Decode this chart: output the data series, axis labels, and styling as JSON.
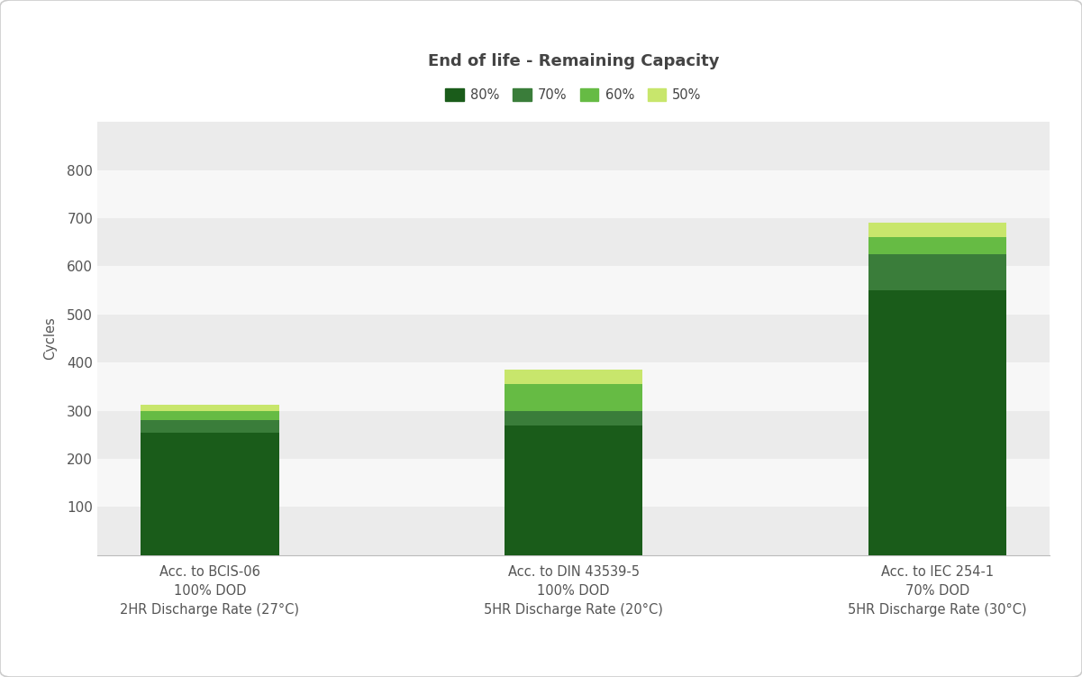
{
  "title": "End of life - Remaining Capacity",
  "ylabel": "Cycles",
  "categories": [
    "Acc. to BCIS-06\n100% DOD\n2HR Discharge Rate (27°C)",
    "Acc. to DIN 43539-5\n100% DOD\n5HR Discharge Rate (20°C)",
    "Acc. to IEC 254-1\n70% DOD\n5HR Discharge Rate (30°C)"
  ],
  "segments": {
    "80%": [
      255,
      270,
      550
    ],
    "70%": [
      25,
      30,
      75
    ],
    "60%": [
      20,
      55,
      35
    ],
    "50%": [
      12,
      30,
      30
    ]
  },
  "colors": {
    "80%": "#1a5c1a",
    "70%": "#3a7d3a",
    "60%": "#66bb44",
    "50%": "#c8e66c"
  },
  "legend_labels": [
    "80%",
    "70%",
    "60%",
    "50%"
  ],
  "ylim": [
    0,
    900
  ],
  "yticks": [
    0,
    100,
    200,
    300,
    400,
    500,
    600,
    700,
    800
  ],
  "background_color": "#ffffff",
  "plot_bg_light": "#ebebeb",
  "plot_bg_dark": "#f7f7f7",
  "bar_width": 0.38,
  "title_fontsize": 13,
  "label_fontsize": 10.5,
  "tick_fontsize": 11
}
